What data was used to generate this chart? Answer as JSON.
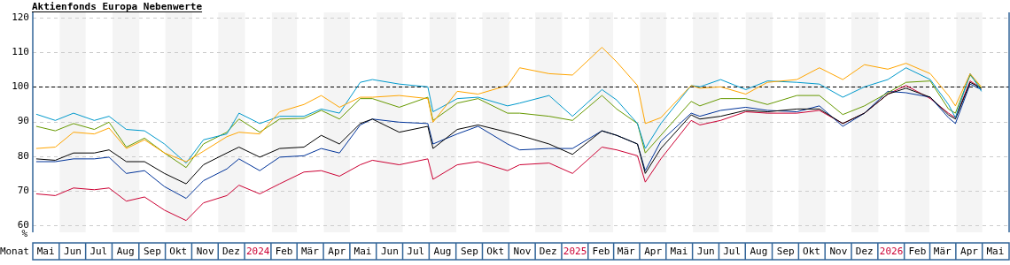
{
  "chart_data": {
    "type": "line",
    "title": "Aktienfonds Europa Nebenwerte",
    "xlabel": "Monat",
    "ylabel": "%",
    "x": [
      "2023-05-05",
      "2023-05-27",
      "2023-06-17",
      "2023-07-11",
      "2023-07-28",
      "2023-08-17",
      "2023-09-07",
      "2023-09-30",
      "2023-10-25",
      "2023-11-14",
      "2023-12-11",
      "2023-12-25",
      "2024-01-18",
      "2024-02-10",
      "2024-03-09",
      "2024-03-29",
      "2024-04-19",
      "2024-05-13",
      "2024-05-27",
      "2024-06-27",
      "2024-07-30",
      "2024-08-05",
      "2024-09-02",
      "2024-09-26",
      "2024-10-30",
      "2024-11-13",
      "2024-12-17",
      "2025-01-13",
      "2025-02-16",
      "2025-03-05",
      "2025-03-29",
      "2025-04-07",
      "2025-04-25",
      "2025-05-30",
      "2025-06-09",
      "2025-07-03",
      "2025-08-01",
      "2025-08-26",
      "2025-09-29",
      "2025-10-25",
      "2025-11-21",
      "2025-12-16",
      "2026-01-12",
      "2026-02-02",
      "2026-03-02",
      "2026-03-23",
      "2026-03-31",
      "2026-04-17",
      "2026-04-30"
    ],
    "series": [
      {
        "color": "#ffa500",
        "values": [
          82.2,
          82.6,
          86.9,
          86.4,
          88.1,
          82.2,
          84.7,
          80.9,
          78.4,
          81.4,
          85.6,
          86.9,
          86.4,
          92.8,
          94.9,
          97.5,
          94.1,
          97.0,
          97.0,
          97.5,
          96.6,
          89.8,
          98.7,
          97.9,
          100.4,
          105.5,
          103.8,
          103.4,
          111.4,
          107.2,
          100.4,
          89.4,
          91.1,
          100.4,
          99.6,
          100,
          97.9,
          101.3,
          102.1,
          105.5,
          102.1,
          106.4,
          105.1,
          106.8,
          103.8,
          97.5,
          94.5,
          103.8,
          100
        ]
      },
      {
        "color": "#0099cc",
        "values": [
          92.1,
          90.3,
          92.4,
          90.3,
          91.5,
          87.7,
          87.3,
          83.5,
          78.0,
          84.7,
          86.4,
          92.4,
          89.4,
          91.5,
          91.5,
          93.6,
          92.4,
          101.3,
          102.1,
          100.8,
          100,
          92.8,
          96.6,
          97.0,
          94.5,
          95.3,
          97.5,
          91.5,
          99.2,
          96.2,
          89.4,
          82.2,
          89.4,
          100.4,
          100,
          102.1,
          99.2,
          101.7,
          101.3,
          100.8,
          97.0,
          100,
          102.1,
          105.5,
          102.1,
          94.9,
          91.1,
          103.8,
          98.7
        ]
      },
      {
        "color": "#669900",
        "values": [
          88.6,
          87.3,
          89.4,
          87.7,
          89.8,
          82.6,
          85.2,
          80.9,
          76.7,
          83.5,
          86.9,
          90.7,
          86.9,
          90.7,
          90.9,
          93.2,
          90.7,
          96.6,
          96.6,
          94.1,
          97.0,
          90.3,
          95.3,
          96.6,
          92.4,
          92.4,
          91.5,
          90.3,
          97.5,
          93.6,
          89.4,
          80.9,
          86.0,
          95.8,
          94.5,
          96.6,
          96.6,
          94.9,
          97.5,
          97.5,
          92.0,
          94.5,
          98.3,
          101.3,
          101.7,
          93.6,
          92.4,
          103.4,
          99.6
        ]
      },
      {
        "color": "#000000",
        "values": [
          79.2,
          78.8,
          80.9,
          80.9,
          81.8,
          78.4,
          78.4,
          75.0,
          72.0,
          77.5,
          80.9,
          82.6,
          79.7,
          82.2,
          82.6,
          86.0,
          83.5,
          89.4,
          90.7,
          86.9,
          88.6,
          82.2,
          87.7,
          89.0,
          86.9,
          86.0,
          83.5,
          80.5,
          87.3,
          86.0,
          83.5,
          75.0,
          82.2,
          91.9,
          90.7,
          91.5,
          93.2,
          92.8,
          93.6,
          93.6,
          89.4,
          92.4,
          97.9,
          99.6,
          97.0,
          91.9,
          90.7,
          101.3,
          99.6
        ]
      },
      {
        "color": "#003399",
        "values": [
          78.4,
          78.4,
          79.2,
          79.2,
          79.7,
          75.0,
          75.8,
          71.2,
          67.8,
          72.9,
          76.3,
          79.2,
          75.8,
          79.7,
          80.1,
          82.2,
          80.9,
          89.0,
          90.7,
          89.8,
          89.4,
          83.5,
          86.4,
          88.6,
          83.5,
          81.8,
          82.2,
          82.2,
          87.3,
          86.0,
          83.5,
          75.8,
          84.3,
          92.4,
          91.5,
          93.2,
          94.1,
          93.2,
          92.8,
          94.5,
          88.6,
          92.4,
          98.7,
          98.3,
          97.0,
          91.1,
          89.4,
          100.8,
          99.2
        ]
      },
      {
        "color": "#cc0033",
        "values": [
          69.1,
          68.6,
          70.8,
          70.3,
          70.8,
          67.0,
          68.2,
          64.4,
          61.4,
          66.5,
          68.6,
          71.6,
          69.1,
          72.0,
          75.4,
          75.8,
          74.2,
          77.5,
          78.8,
          77.5,
          79.2,
          73.3,
          77.5,
          78.4,
          75.8,
          77.5,
          78.0,
          75.0,
          82.6,
          81.8,
          80.1,
          72.5,
          79.2,
          90.3,
          89.0,
          90.3,
          92.8,
          92.4,
          92.4,
          93.2,
          89.4,
          92.4,
          97.9,
          100.4,
          96.6,
          92.4,
          91.1,
          101.7,
          99.6
        ]
      }
    ],
    "xlim": [
      "2023-05-01",
      "2026-06-01"
    ],
    "xticks": [
      {
        "value": "2023-05-16",
        "label": "Mai"
      },
      {
        "value": "2023-06-16",
        "label": "Jun"
      },
      {
        "value": "2023-07-16",
        "label": "Jul"
      },
      {
        "value": "2023-08-16",
        "label": "Aug"
      },
      {
        "value": "2023-09-16",
        "label": "Sep"
      },
      {
        "value": "2023-10-16",
        "label": "Okt"
      },
      {
        "value": "2023-11-16",
        "label": "Nov"
      },
      {
        "value": "2023-12-16",
        "label": "Dez"
      },
      {
        "value": "2024-01-16",
        "label": "2024"
      },
      {
        "value": "2024-02-15",
        "label": "Feb"
      },
      {
        "value": "2024-03-16",
        "label": "Mär"
      },
      {
        "value": "2024-04-16",
        "label": "Apr"
      },
      {
        "value": "2024-05-16",
        "label": "Mai"
      },
      {
        "value": "2024-06-16",
        "label": "Jun"
      },
      {
        "value": "2024-07-16",
        "label": "Jul"
      },
      {
        "value": "2024-08-16",
        "label": "Aug"
      },
      {
        "value": "2024-09-16",
        "label": "Sep"
      },
      {
        "value": "2024-10-16",
        "label": "Okt"
      },
      {
        "value": "2024-11-16",
        "label": "Nov"
      },
      {
        "value": "2024-12-16",
        "label": "Dez"
      },
      {
        "value": "2025-01-16",
        "label": "2025"
      },
      {
        "value": "2025-02-15",
        "label": "Feb"
      },
      {
        "value": "2025-03-16",
        "label": "Mär"
      },
      {
        "value": "2025-04-16",
        "label": "Apr"
      },
      {
        "value": "2025-05-16",
        "label": "Mai"
      },
      {
        "value": "2025-06-16",
        "label": "Jun"
      },
      {
        "value": "2025-07-16",
        "label": "Jul"
      },
      {
        "value": "2025-08-16",
        "label": "Aug"
      },
      {
        "value": "2025-09-16",
        "label": "Sep"
      },
      {
        "value": "2025-10-16",
        "label": "Okt"
      },
      {
        "value": "2025-11-16",
        "label": "Nov"
      },
      {
        "value": "2025-12-16",
        "label": "Dez"
      },
      {
        "value": "2026-01-16",
        "label": "2026"
      },
      {
        "value": "2026-02-15",
        "label": "Feb"
      },
      {
        "value": "2026-03-16",
        "label": "Mär"
      },
      {
        "value": "2026-04-16",
        "label": "Apr"
      },
      {
        "value": "2026-05-16",
        "label": "Mai"
      }
    ],
    "ylim": [
      58,
      121.5
    ],
    "yticks": [
      60,
      70,
      80,
      90,
      100,
      110,
      120
    ],
    "grid": "y",
    "marker": "none",
    "ref_lines": [
      {
        "axis": "y",
        "value": 100,
        "color": "#000000",
        "line_style": "dashed"
      }
    ],
    "bands": [
      {
        "axis": "x",
        "from": "2023-06-01",
        "to": "2023-07-01",
        "color": "#f4f4f4"
      },
      {
        "axis": "x",
        "from": "2023-08-01",
        "to": "2023-09-01",
        "color": "#f4f4f4"
      },
      {
        "axis": "x",
        "from": "2023-10-01",
        "to": "2023-11-01",
        "color": "#f4f4f4"
      },
      {
        "axis": "x",
        "from": "2023-12-01",
        "to": "2024-01-01",
        "color": "#f4f4f4"
      },
      {
        "axis": "x",
        "from": "2024-02-01",
        "to": "2024-03-01",
        "color": "#f4f4f4"
      },
      {
        "axis": "x",
        "from": "2024-04-01",
        "to": "2024-05-01",
        "color": "#f4f4f4"
      },
      {
        "axis": "x",
        "from": "2024-06-01",
        "to": "2024-07-01",
        "color": "#f4f4f4"
      },
      {
        "axis": "x",
        "from": "2024-08-01",
        "to": "2024-09-01",
        "color": "#f4f4f4"
      },
      {
        "axis": "x",
        "from": "2024-10-01",
        "to": "2024-11-01",
        "color": "#f4f4f4"
      },
      {
        "axis": "x",
        "from": "2024-12-01",
        "to": "2025-01-01",
        "color": "#f4f4f4"
      },
      {
        "axis": "x",
        "from": "2025-02-01",
        "to": "2025-03-01",
        "color": "#f4f4f4"
      },
      {
        "axis": "x",
        "from": "2025-04-01",
        "to": "2025-05-01",
        "color": "#f4f4f4"
      },
      {
        "axis": "x",
        "from": "2025-06-01",
        "to": "2025-07-01",
        "color": "#f4f4f4"
      },
      {
        "axis": "x",
        "from": "2025-08-01",
        "to": "2025-09-01",
        "color": "#f4f4f4"
      },
      {
        "axis": "x",
        "from": "2025-10-01",
        "to": "2025-11-01",
        "color": "#f4f4f4"
      },
      {
        "axis": "x",
        "from": "2025-12-01",
        "to": "2026-01-01",
        "color": "#f4f4f4"
      },
      {
        "axis": "x",
        "from": "2026-02-01",
        "to": "2026-03-01",
        "color": "#f4f4f4"
      },
      {
        "axis": "x",
        "from": "2026-04-01",
        "to": "2026-05-01",
        "color": "#f4f4f4"
      }
    ]
  }
}
